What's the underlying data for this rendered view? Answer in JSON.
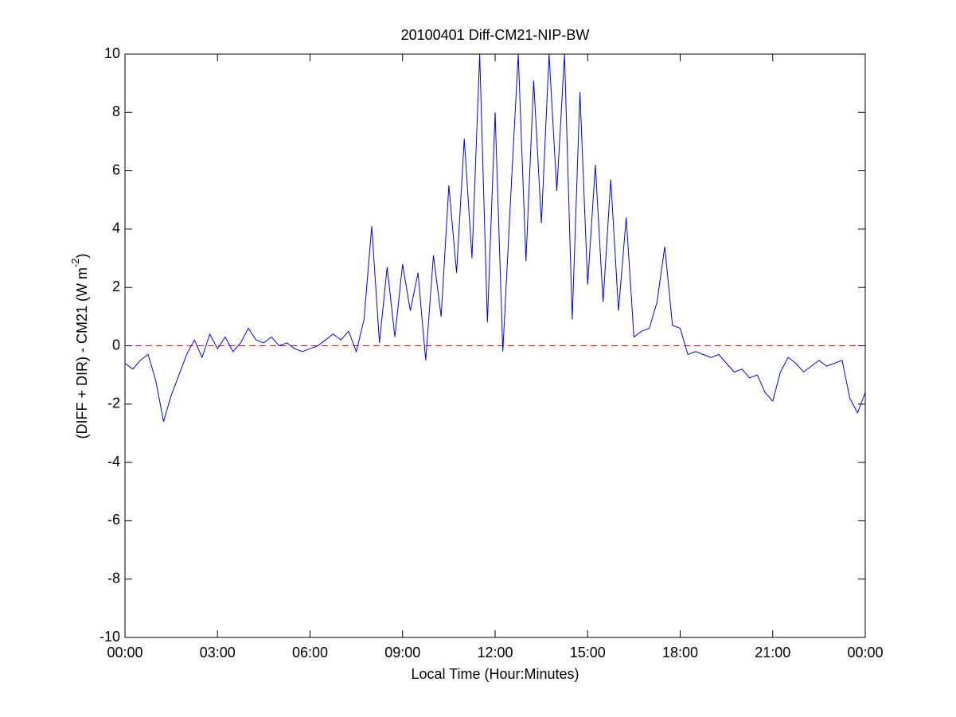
{
  "chart_data": {
    "type": "line",
    "title": "20100401 Diff-CM21-NIP-BW",
    "xlabel": "Local Time (Hour:Minutes)",
    "ylabel": {
      "text": "(DIFF + DIR) - CM21 (W m",
      "superscript": "-2",
      "suffix": ")"
    },
    "x": [
      0,
      0.25,
      0.5,
      0.75,
      1,
      1.25,
      1.5,
      1.75,
      2,
      2.25,
      2.5,
      2.75,
      3,
      3.25,
      3.5,
      3.75,
      4,
      4.25,
      4.5,
      4.75,
      5,
      5.25,
      5.5,
      5.75,
      6,
      6.25,
      6.5,
      6.75,
      7,
      7.25,
      7.5,
      7.75,
      8,
      8.25,
      8.5,
      8.75,
      9,
      9.25,
      9.5,
      9.75,
      10,
      10.25,
      10.5,
      10.75,
      11,
      11.25,
      11.5,
      11.75,
      12,
      12.25,
      12.5,
      12.75,
      13,
      13.25,
      13.5,
      13.75,
      14,
      14.25,
      14.5,
      14.75,
      15,
      15.25,
      15.5,
      15.75,
      16,
      16.25,
      16.5,
      16.75,
      17,
      17.25,
      17.5,
      17.75,
      18,
      18.25,
      18.5,
      18.75,
      19,
      19.25,
      19.5,
      19.75,
      20,
      20.25,
      20.5,
      20.75,
      21,
      21.25,
      21.5,
      21.75,
      22,
      22.25,
      22.5,
      22.75,
      23,
      23.25,
      23.5,
      23.75,
      24
    ],
    "series": [
      {
        "color": "#0000ff",
        "values": [
          -0.6,
          -0.8,
          -0.5,
          -0.3,
          -1.2,
          -2.6,
          -1.7,
          -1.0,
          -0.3,
          0.2,
          -0.4,
          0.4,
          -0.1,
          0.3,
          -0.2,
          0.1,
          0.6,
          0.2,
          0.1,
          0.3,
          0.0,
          0.1,
          -0.1,
          -0.2,
          -0.1,
          0.0,
          0.2,
          0.4,
          0.2,
          0.5,
          -0.2,
          0.9,
          4.1,
          0.1,
          2.7,
          0.3,
          2.8,
          1.2,
          2.5,
          -0.5,
          3.1,
          1.0,
          5.5,
          2.5,
          7.1,
          3.0,
          10.0,
          0.8,
          8.0,
          -0.2,
          5.0,
          10.0,
          2.9,
          9.1,
          4.2,
          10.0,
          5.3,
          10.0,
          0.9,
          8.7,
          2.1,
          6.2,
          1.5,
          5.7,
          1.2,
          4.4,
          0.3,
          0.5,
          0.6,
          1.5,
          3.4,
          0.7,
          0.6,
          -0.3,
          -0.2,
          -0.3,
          -0.4,
          -0.3,
          -0.6,
          -0.9,
          -0.8,
          -1.1,
          -1.0,
          -1.6,
          -1.9,
          -0.9,
          -0.4,
          -0.6,
          -0.9,
          -0.7,
          -0.5,
          -0.7,
          -0.6,
          -0.5,
          -1.8,
          -2.3,
          -1.6
        ]
      }
    ],
    "reference_line": {
      "value": 0,
      "color": "#ff0000",
      "dashed": true
    },
    "xlim": [
      0,
      24
    ],
    "xticks": [
      {
        "value": 0,
        "label": "00:00"
      },
      {
        "value": 3,
        "label": "03:00"
      },
      {
        "value": 6,
        "label": "06:00"
      },
      {
        "value": 9,
        "label": "09:00"
      },
      {
        "value": 12,
        "label": "12:00"
      },
      {
        "value": 15,
        "label": "15:00"
      },
      {
        "value": 18,
        "label": "18:00"
      },
      {
        "value": 21,
        "label": "21:00"
      },
      {
        "value": 24,
        "label": "00:00"
      }
    ],
    "ylim": [
      -10,
      10
    ],
    "yticks": [
      -10,
      -8,
      -6,
      -4,
      -2,
      0,
      2,
      4,
      6,
      8,
      10
    ],
    "grid": false
  }
}
